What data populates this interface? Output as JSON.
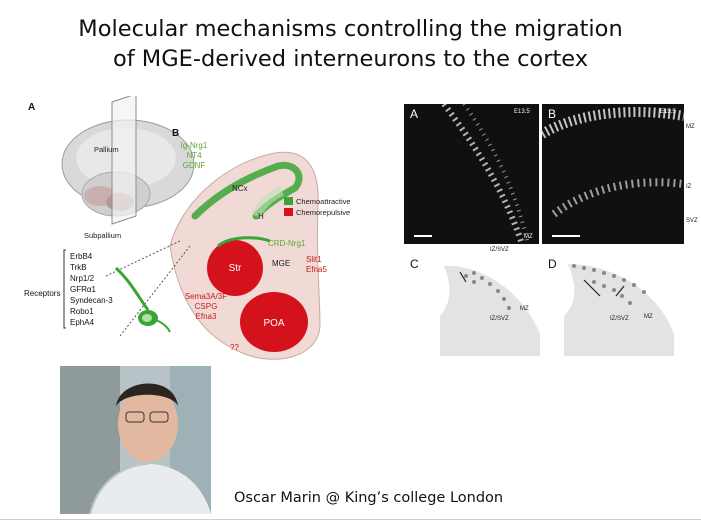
{
  "slide": {
    "title_line1": "Molecular mechanisms controlling the migration",
    "title_line2": "of MGE-derived interneurons to the cortex",
    "caption": "Oscar Marin @ King’s college London"
  },
  "left_figure": {
    "panel_a_label": "A",
    "panel_b_label": "B",
    "pallium": "Pallium",
    "subpallium": "Subpallium",
    "receptors_label": "Receptors",
    "receptors": [
      "ErbB4",
      "TrkB",
      "Nrp1/2",
      "GFRα1",
      "Syndecan-3",
      "Robo1",
      "EphA4"
    ],
    "attractants": [
      "Ig-Nrg1",
      "NT4",
      "GDNF"
    ],
    "ncx": "NCx",
    "h": "H",
    "legend_attract": "Chemoattractive",
    "legend_repulse": "Chemorepulsive",
    "crd_nrg1": "CRD-Nrg1",
    "mge": "MGE",
    "slit_efna": [
      "Slit1",
      "Efna5"
    ],
    "str": "Str",
    "repellents": [
      "Sema3A/3F",
      "CSPG",
      "Efna3"
    ],
    "poa": "POA",
    "unknown": "??",
    "colors": {
      "attract": "#3aa535",
      "repulse": "#d4121c",
      "attract_text": "#5aa832",
      "repulse_text": "#c81a1f"
    }
  },
  "right_figure": {
    "panel_a": "A",
    "panel_b": "B",
    "stage_a": "E13.5",
    "stage_b": "E15.5",
    "mz": "MZ",
    "iz": "IZ",
    "svz": "SVZ",
    "iz_svz": "IZ/SVZ",
    "panel_c": "C",
    "panel_d": "D"
  },
  "photo": {
    "alt": "portrait-photo"
  }
}
